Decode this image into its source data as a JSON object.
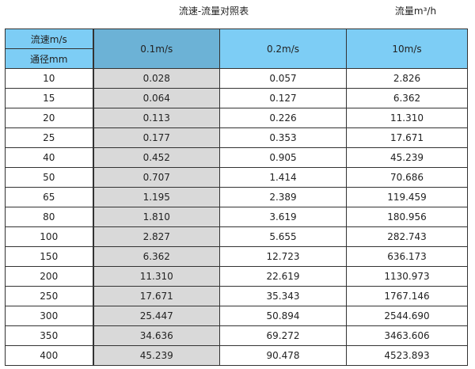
{
  "title": "流速-流量对照表",
  "unit_label": "流量m³/h",
  "table": {
    "corner_top": "流速m/s",
    "corner_bottom": "通径mm",
    "columns": [
      "0.1m/s",
      "0.2m/s",
      "10m/s"
    ],
    "rows": [
      [
        "10",
        "0.028",
        "0.057",
        "2.826"
      ],
      [
        "15",
        "0.064",
        "0.127",
        "6.362"
      ],
      [
        "20",
        "0.113",
        "0.226",
        "11.310"
      ],
      [
        "25",
        "0.177",
        "0.353",
        "17.671"
      ],
      [
        "40",
        "0.452",
        "0.905",
        "45.239"
      ],
      [
        "50",
        "0.707",
        "1.414",
        "70.686"
      ],
      [
        "65",
        "1.195",
        "2.389",
        "119.459"
      ],
      [
        "80",
        "1.810",
        "3.619",
        "180.956"
      ],
      [
        "100",
        "2.827",
        "5.655",
        "282.743"
      ],
      [
        "150",
        "6.362",
        "12.723",
        "636.173"
      ],
      [
        "200",
        "11.310",
        "22.619",
        "1130.973"
      ],
      [
        "250",
        "17.671",
        "35.343",
        "1767.146"
      ],
      [
        "300",
        "25.447",
        "50.894",
        "2544.690"
      ],
      [
        "350",
        "34.636",
        "69.272",
        "3463.606"
      ],
      [
        "400",
        "45.239",
        "90.478",
        "4523.893"
      ]
    ]
  },
  "colors": {
    "header": "#7dcdf5",
    "highlight_header": "#6cb2d6",
    "highlight_column": "#d9d9d9"
  }
}
